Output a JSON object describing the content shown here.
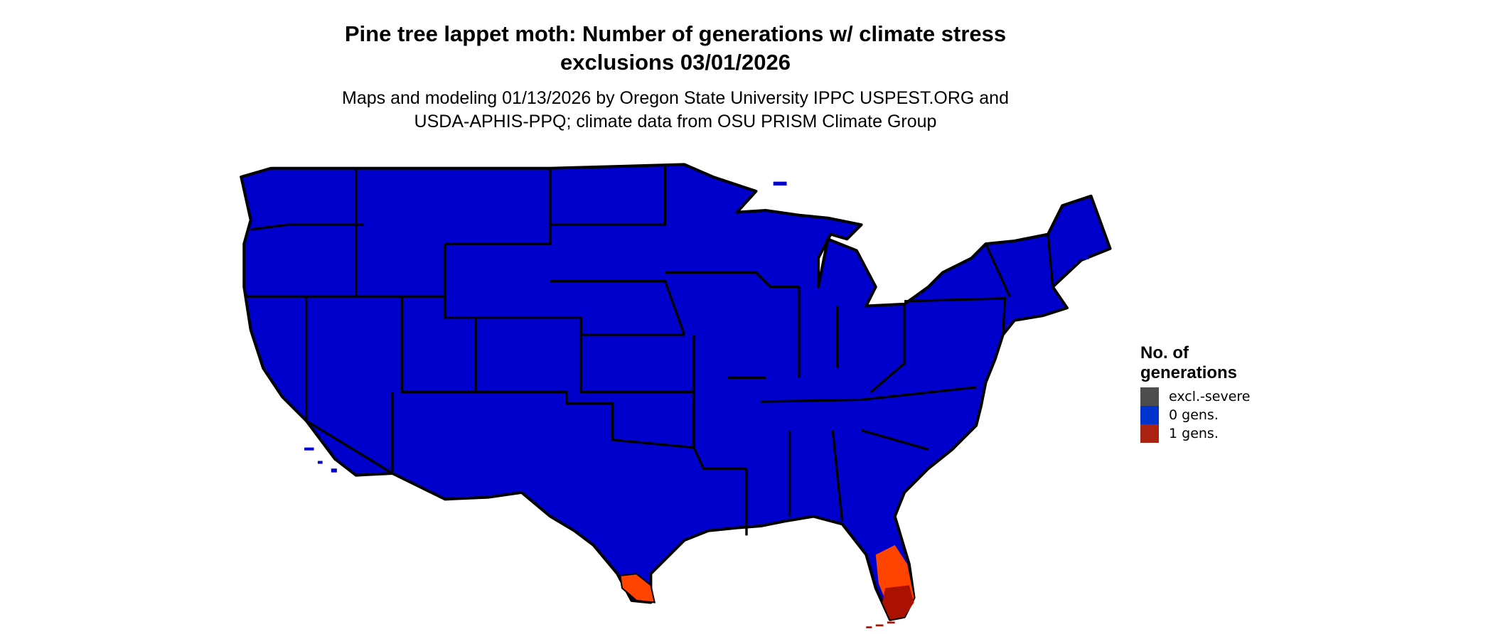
{
  "title": {
    "line1": "Pine tree lappet moth: Number of generations w/ climate stress",
    "line2": "exclusions 03/01/2026"
  },
  "subtitle": {
    "line1": "Maps and modeling 01/13/2026 by Oregon State University IPPC USPEST.ORG and",
    "line2": "USDA-APHIS-PPQ; climate data from OSU PRISM Climate Group"
  },
  "legend": {
    "title_line1": "No. of",
    "title_line2": "generations",
    "items": [
      {
        "label": "excl.-severe",
        "color": "#4d4d4d"
      },
      {
        "label": "0 gens.",
        "color": "#0033cc"
      },
      {
        "label": "1 gens.",
        "color": "#aa2211"
      }
    ]
  },
  "map": {
    "region": "Contiguous United States",
    "fill_colors": {
      "zero_gens": "#0000cc",
      "one_gen_light": "#ff4400",
      "one_gen_dark": "#aa1100",
      "borders": "#000000"
    }
  }
}
